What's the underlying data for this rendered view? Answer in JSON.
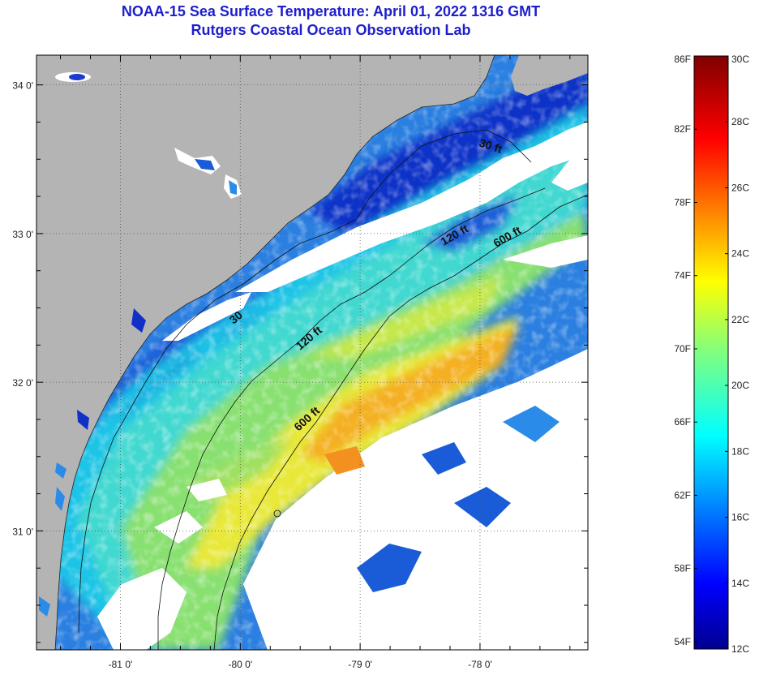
{
  "title": {
    "line1": "NOAA-15 Sea Surface Temperature:  April 01, 2022 1316 GMT",
    "line2": "Rutgers Coastal Ocean Observation Lab"
  },
  "colors": {
    "land": "#b4b4b4",
    "cloud": "#ffffff",
    "title": "#1e1ecc"
  },
  "axes": {
    "lat_ticks": [
      {
        "value": 34,
        "label": "34 0'"
      },
      {
        "value": 33,
        "label": "33 0'"
      },
      {
        "value": 32,
        "label": "32 0'"
      },
      {
        "value": 31,
        "label": "31 0'"
      }
    ],
    "lon_ticks": [
      {
        "value": -81,
        "label": "-81 0'"
      },
      {
        "value": -80,
        "label": "-80 0'"
      },
      {
        "value": -79,
        "label": "-79 0'"
      },
      {
        "value": -78,
        "label": "-78 0'"
      }
    ],
    "lat_range": [
      30.2,
      34.2
    ],
    "lon_range": [
      -81.7,
      -77.1
    ]
  },
  "contours": [
    {
      "name": "30 ft",
      "label": "30 ft"
    },
    {
      "name": "30 ft",
      "label": "30"
    },
    {
      "name": "120 ft",
      "label": "120 ft"
    },
    {
      "name": "120 ft",
      "label": "120 ft"
    },
    {
      "name": "600 ft",
      "label": "600 ft"
    },
    {
      "name": "600 ft",
      "label": "600 ft"
    }
  ],
  "colorbar": {
    "scale_range_c": [
      12,
      30
    ],
    "fahrenheit_labels": [
      "86F",
      "82F",
      "78F",
      "74F",
      "70F",
      "66F",
      "62F",
      "58F",
      "54F"
    ],
    "celsius_labels": [
      "30C",
      "28C",
      "26C",
      "24C",
      "22C",
      "20C",
      "18C",
      "16C",
      "14C",
      "12C"
    ]
  }
}
